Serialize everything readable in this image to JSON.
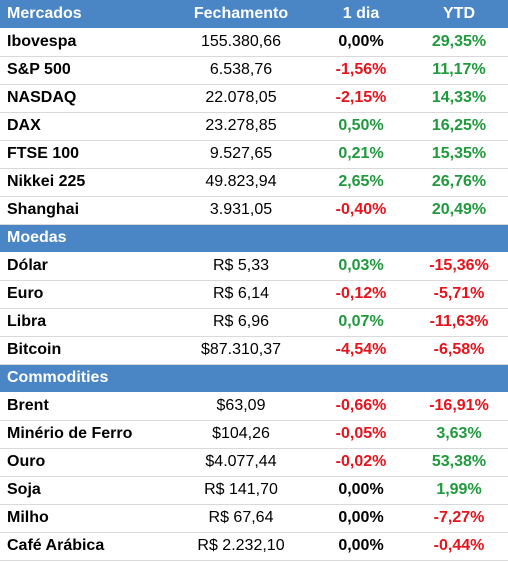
{
  "colors": {
    "header_bg": "#4a86c5",
    "positive": "#1e9a3c",
    "negative": "#e4131c",
    "neutral": "#000000"
  },
  "header": {
    "name": "Mercados",
    "close": "Fechamento",
    "day": "1 dia",
    "ytd": "YTD"
  },
  "sections": [
    {
      "title": "",
      "rows": [
        {
          "name": "Ibovespa",
          "close": "155.380,66",
          "day": "0,00%",
          "ytd": "29,35%"
        },
        {
          "name": "S&P 500",
          "close": "6.538,76",
          "day": "-1,56%",
          "ytd": "11,17%"
        },
        {
          "name": "NASDAQ",
          "close": "22.078,05",
          "day": "-2,15%",
          "ytd": "14,33%"
        },
        {
          "name": "DAX",
          "close": "23.278,85",
          "day": "0,50%",
          "ytd": "16,25%"
        },
        {
          "name": "FTSE 100",
          "close": "9.527,65",
          "day": "0,21%",
          "ytd": "15,35%"
        },
        {
          "name": "Nikkei 225",
          "close": "49.823,94",
          "day": "2,65%",
          "ytd": "26,76%"
        },
        {
          "name": "Shanghai",
          "close": "3.931,05",
          "day": "-0,40%",
          "ytd": "20,49%"
        }
      ]
    },
    {
      "title": "Moedas",
      "rows": [
        {
          "name": "Dólar",
          "close": "R$ 5,33",
          "day": "0,03%",
          "ytd": "-15,36%"
        },
        {
          "name": "Euro",
          "close": "R$ 6,14",
          "day": "-0,12%",
          "ytd": "-5,71%"
        },
        {
          "name": "Libra",
          "close": "R$ 6,96",
          "day": "0,07%",
          "ytd": "-11,63%"
        },
        {
          "name": "Bitcoin",
          "close": "$87.310,37",
          "day": "-4,54%",
          "ytd": "-6,58%"
        }
      ]
    },
    {
      "title": "Commodities",
      "rows": [
        {
          "name": "Brent",
          "close": "$63,09",
          "day": "-0,66%",
          "ytd": "-16,91%"
        },
        {
          "name": "Minério de Ferro",
          "close": "$104,26",
          "day": "-0,05%",
          "ytd": "3,63%"
        },
        {
          "name": "Ouro",
          "close": "$4.077,44",
          "day": "-0,02%",
          "ytd": "53,38%"
        },
        {
          "name": "Soja",
          "close": "R$ 141,70",
          "day": "0,00%",
          "ytd": "1,99%"
        },
        {
          "name": "Milho",
          "close": "R$ 67,64",
          "day": "0,00%",
          "ytd": "-7,27%"
        },
        {
          "name": "Café Arábica",
          "close": "R$ 2.232,10",
          "day": "0,00%",
          "ytd": "-0,44%"
        }
      ]
    }
  ]
}
